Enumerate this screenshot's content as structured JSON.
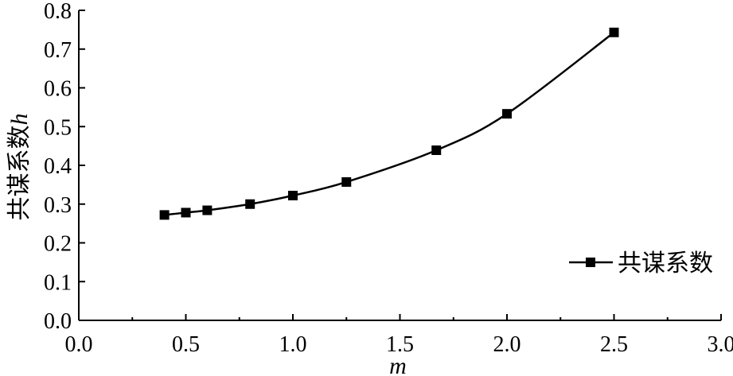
{
  "chart_data": {
    "type": "line",
    "x_ticks": [
      "0.0",
      "0.5",
      "1.0",
      "1.5",
      "2.0",
      "2.5",
      "3.0"
    ],
    "y_ticks": [
      "0.0",
      "0.1",
      "0.2",
      "0.3",
      "0.4",
      "0.5",
      "0.6",
      "0.7",
      "0.8"
    ],
    "xlabel": "m",
    "ylabel": "共谋系数",
    "ylabel_var": "h",
    "xlim": [
      0,
      3
    ],
    "ylim": [
      0,
      0.8
    ],
    "grid": false,
    "legend_position": "bottom-right",
    "series": [
      {
        "name": "共谋系数",
        "marker": "square",
        "color": "#000000",
        "x": [
          0.4,
          0.5,
          0.6,
          0.8,
          1.0,
          1.25,
          1.67,
          2.0,
          2.5
        ],
        "y": [
          0.272,
          0.278,
          0.284,
          0.3,
          0.322,
          0.357,
          0.439,
          0.533,
          0.743
        ]
      }
    ]
  }
}
